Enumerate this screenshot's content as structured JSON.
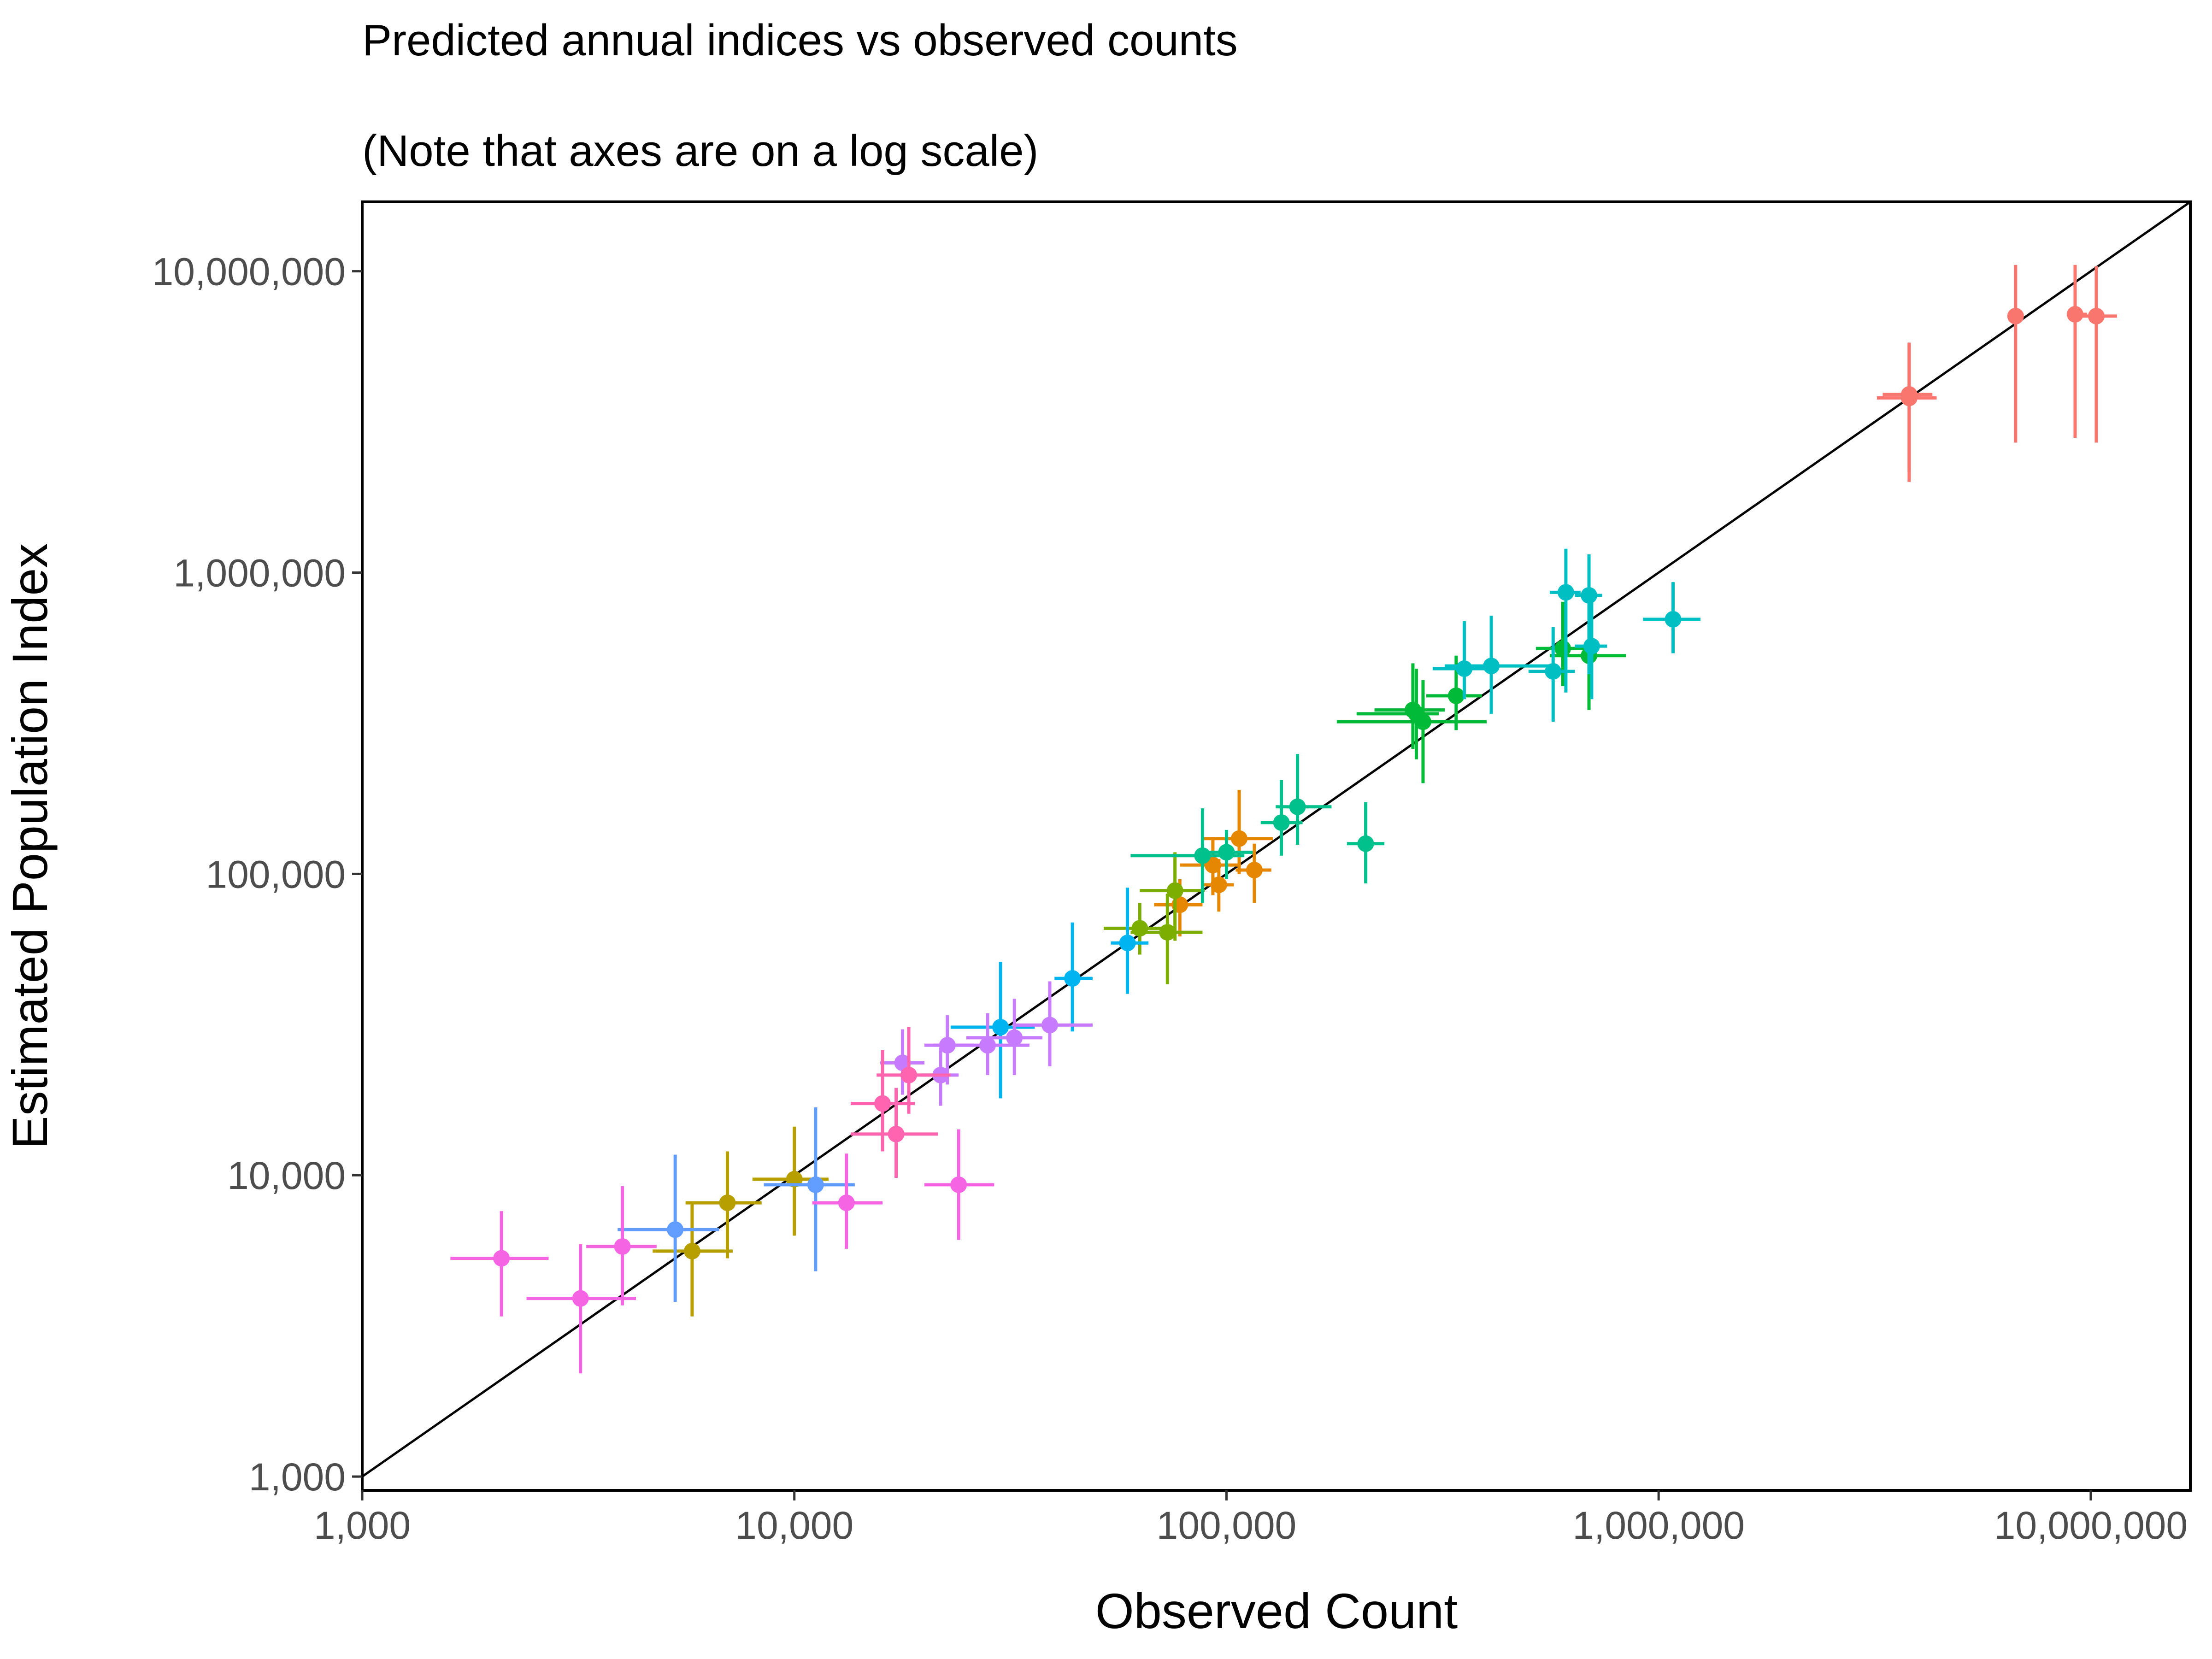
{
  "chart_data": {
    "type": "scatter",
    "title": "Predicted annual indices vs observed counts",
    "subtitle": "(Note that axes are on a log scale)",
    "xlabel": "Observed Count",
    "ylabel": "Estimated Population Index",
    "x_scale": "log10",
    "y_scale": "log10",
    "xlim": [
      1000,
      17000000
    ],
    "ylim": [
      900,
      17000000
    ],
    "x_ticks": [
      1000,
      10000,
      100000,
      1000000,
      10000000
    ],
    "x_tick_labels": [
      "1,000",
      "10,000",
      "100,000",
      "1,000,000",
      "10,000,000"
    ],
    "y_ticks": [
      1000,
      10000,
      100000,
      1000000,
      10000000
    ],
    "y_tick_labels": [
      "1,000",
      "10,000",
      "100,000",
      "1,000,000",
      "10,000,000"
    ],
    "grid": false,
    "legend": "none",
    "reference_line": "y = x",
    "error_bars": "horizontal and vertical intervals on each point",
    "colors": {
      "red": "#F8766D",
      "orange": "#E58700",
      "gold": "#B79F00",
      "olive": "#7CAE00",
      "green": "#00BA38",
      "teal": "#00C08B",
      "cyan": "#00BFC4",
      "sky": "#00B4F0",
      "blue": "#619CFF",
      "purple": "#C77CFF",
      "magenta": "#F564E3",
      "pink": "#FF64B0"
    },
    "series": [
      {
        "color": "red",
        "points": [
          {
            "x": 3800000,
            "y": 3800000,
            "xlo": 3200000,
            "xhi": 4400000,
            "ylo": 2000000,
            "yhi": 5800000
          },
          {
            "x": 3800000,
            "y": 3900000,
            "xlo": 3300000,
            "xhi": 4300000,
            "ylo": 2200000,
            "yhi": 5700000
          },
          {
            "x": 6700000,
            "y": 7100000,
            "xlo": 6700000,
            "xhi": 6700000,
            "ylo": 2700000,
            "yhi": 10500000
          },
          {
            "x": 9200000,
            "y": 7200000,
            "xlo": 8800000,
            "xhi": 9800000,
            "ylo": 2800000,
            "yhi": 10500000
          },
          {
            "x": 10300000,
            "y": 7100000,
            "xlo": 9300000,
            "xhi": 11500000,
            "ylo": 2700000,
            "yhi": 10400000
          }
        ]
      },
      {
        "color": "orange",
        "points": [
          {
            "x": 78000,
            "y": 79000,
            "xlo": 68000,
            "xhi": 88000,
            "ylo": 62000,
            "yhi": 96000
          },
          {
            "x": 93000,
            "y": 107000,
            "xlo": 78000,
            "xhi": 108000,
            "ylo": 85000,
            "yhi": 131000
          },
          {
            "x": 96000,
            "y": 92000,
            "xlo": 88000,
            "xhi": 104000,
            "ylo": 75000,
            "yhi": 112000
          },
          {
            "x": 107000,
            "y": 131000,
            "xlo": 88000,
            "xhi": 128000,
            "ylo": 100000,
            "yhi": 190000
          },
          {
            "x": 116000,
            "y": 103000,
            "xlo": 105000,
            "xhi": 127000,
            "ylo": 80000,
            "yhi": 126000
          }
        ]
      },
      {
        "color": "gold",
        "points": [
          {
            "x": 5800,
            "y": 5600,
            "xlo": 4700,
            "xhi": 7200,
            "ylo": 3400,
            "yhi": 8100
          },
          {
            "x": 7000,
            "y": 8100,
            "xlo": 5600,
            "xhi": 8400,
            "ylo": 5300,
            "yhi": 12000
          },
          {
            "x": 10000,
            "y": 9700,
            "xlo": 8000,
            "xhi": 12000,
            "ylo": 6300,
            "yhi": 14500
          }
        ]
      },
      {
        "color": "olive",
        "points": [
          {
            "x": 63000,
            "y": 66000,
            "xlo": 52000,
            "xhi": 74000,
            "ylo": 54000,
            "yhi": 80000
          },
          {
            "x": 73000,
            "y": 64000,
            "xlo": 60000,
            "xhi": 88000,
            "ylo": 43000,
            "yhi": 86000
          },
          {
            "x": 76000,
            "y": 88000,
            "xlo": 63000,
            "xhi": 89000,
            "ylo": 60000,
            "yhi": 118000
          }
        ]
      },
      {
        "color": "green",
        "points": [
          {
            "x": 270000,
            "y": 350000,
            "xlo": 220000,
            "xhi": 320000,
            "ylo": 260000,
            "yhi": 500000
          },
          {
            "x": 275000,
            "y": 340000,
            "xlo": 200000,
            "xhi": 310000,
            "ylo": 240000,
            "yhi": 480000
          },
          {
            "x": 285000,
            "y": 320000,
            "xlo": 180000,
            "xhi": 400000,
            "ylo": 200000,
            "yhi": 440000
          },
          {
            "x": 340000,
            "y": 390000,
            "xlo": 290000,
            "xhi": 390000,
            "ylo": 300000,
            "yhi": 530000
          },
          {
            "x": 600000,
            "y": 560000,
            "xlo": 520000,
            "xhi": 680000,
            "ylo": 420000,
            "yhi": 800000
          },
          {
            "x": 690000,
            "y": 530000,
            "xlo": 560000,
            "xhi": 840000,
            "ylo": 350000,
            "yhi": 700000
          }
        ]
      },
      {
        "color": "teal",
        "points": [
          {
            "x": 88000,
            "y": 115000,
            "xlo": 60000,
            "xhi": 110000,
            "ylo": 80000,
            "yhi": 165000
          },
          {
            "x": 100000,
            "y": 118000,
            "xlo": 88000,
            "xhi": 115000,
            "ylo": 96000,
            "yhi": 140000
          },
          {
            "x": 134000,
            "y": 148000,
            "xlo": 120000,
            "xhi": 150000,
            "ylo": 115000,
            "yhi": 205000
          },
          {
            "x": 146000,
            "y": 167000,
            "xlo": 130000,
            "xhi": 175000,
            "ylo": 125000,
            "yhi": 250000
          },
          {
            "x": 210000,
            "y": 126000,
            "xlo": 190000,
            "xhi": 232000,
            "ylo": 93000,
            "yhi": 173000
          }
        ]
      },
      {
        "color": "cyan",
        "points": [
          {
            "x": 355000,
            "y": 480000,
            "xlo": 300000,
            "xhi": 420000,
            "ylo": 380000,
            "yhi": 690000
          },
          {
            "x": 410000,
            "y": 490000,
            "xlo": 320000,
            "xhi": 560000,
            "ylo": 340000,
            "yhi": 720000
          },
          {
            "x": 570000,
            "y": 470000,
            "xlo": 500000,
            "xhi": 640000,
            "ylo": 320000,
            "yhi": 660000
          },
          {
            "x": 610000,
            "y": 860000,
            "xlo": 560000,
            "xhi": 660000,
            "ylo": 400000,
            "yhi": 1200000
          },
          {
            "x": 690000,
            "y": 840000,
            "xlo": 640000,
            "xhi": 740000,
            "ylo": 460000,
            "yhi": 1150000
          },
          {
            "x": 700000,
            "y": 570000,
            "xlo": 640000,
            "xhi": 760000,
            "ylo": 380000,
            "yhi": 800000
          },
          {
            "x": 1080000,
            "y": 700000,
            "xlo": 920000,
            "xhi": 1250000,
            "ylo": 540000,
            "yhi": 930000
          }
        ]
      },
      {
        "color": "sky",
        "points": [
          {
            "x": 30000,
            "y": 31000,
            "xlo": 23000,
            "xhi": 36000,
            "ylo": 18000,
            "yhi": 51000
          },
          {
            "x": 44000,
            "y": 45000,
            "xlo": 40000,
            "xhi": 49000,
            "ylo": 30000,
            "yhi": 69000
          },
          {
            "x": 59000,
            "y": 59000,
            "xlo": 54000,
            "xhi": 66000,
            "ylo": 40000,
            "yhi": 90000
          }
        ]
      },
      {
        "color": "blue",
        "points": [
          {
            "x": 5300,
            "y": 6600,
            "xlo": 3900,
            "xhi": 6700,
            "ylo": 3800,
            "yhi": 11700
          },
          {
            "x": 11200,
            "y": 9300,
            "xlo": 8500,
            "xhi": 13800,
            "ylo": 4800,
            "yhi": 16800
          }
        ]
      },
      {
        "color": "purple",
        "points": [
          {
            "x": 17800,
            "y": 23600,
            "xlo": 15800,
            "xhi": 20000,
            "ylo": 18500,
            "yhi": 30500
          },
          {
            "x": 21800,
            "y": 21500,
            "xlo": 19500,
            "xhi": 24000,
            "ylo": 17000,
            "yhi": 26500
          },
          {
            "x": 22600,
            "y": 27000,
            "xlo": 20000,
            "xhi": 26000,
            "ylo": 20000,
            "yhi": 34000
          },
          {
            "x": 28000,
            "y": 27000,
            "xlo": 21000,
            "xhi": 35000,
            "ylo": 21500,
            "yhi": 34500
          },
          {
            "x": 32300,
            "y": 28600,
            "xlo": 25000,
            "xhi": 37500,
            "ylo": 21500,
            "yhi": 38500
          },
          {
            "x": 39000,
            "y": 31500,
            "xlo": 32000,
            "xhi": 49000,
            "ylo": 23000,
            "yhi": 44000
          }
        ]
      },
      {
        "color": "magenta",
        "points": [
          {
            "x": 2100,
            "y": 5300,
            "xlo": 1600,
            "xhi": 2700,
            "ylo": 3400,
            "yhi": 7600
          },
          {
            "x": 3200,
            "y": 3900,
            "xlo": 2400,
            "xhi": 4300,
            "ylo": 2200,
            "yhi": 5900
          },
          {
            "x": 4000,
            "y": 5800,
            "xlo": 3300,
            "xhi": 4800,
            "ylo": 3700,
            "yhi": 9200
          },
          {
            "x": 13200,
            "y": 8100,
            "xlo": 11000,
            "xhi": 16000,
            "ylo": 5700,
            "yhi": 11800
          },
          {
            "x": 24000,
            "y": 9300,
            "xlo": 20000,
            "xhi": 29000,
            "ylo": 6100,
            "yhi": 14200
          }
        ]
      },
      {
        "color": "pink",
        "points": [
          {
            "x": 16000,
            "y": 17300,
            "xlo": 13500,
            "xhi": 19000,
            "ylo": 12000,
            "yhi": 26000
          },
          {
            "x": 17200,
            "y": 13700,
            "xlo": 13500,
            "xhi": 21500,
            "ylo": 9800,
            "yhi": 19500
          },
          {
            "x": 18400,
            "y": 21500,
            "xlo": 15500,
            "xhi": 23000,
            "ylo": 16000,
            "yhi": 31000
          }
        ]
      }
    ]
  }
}
